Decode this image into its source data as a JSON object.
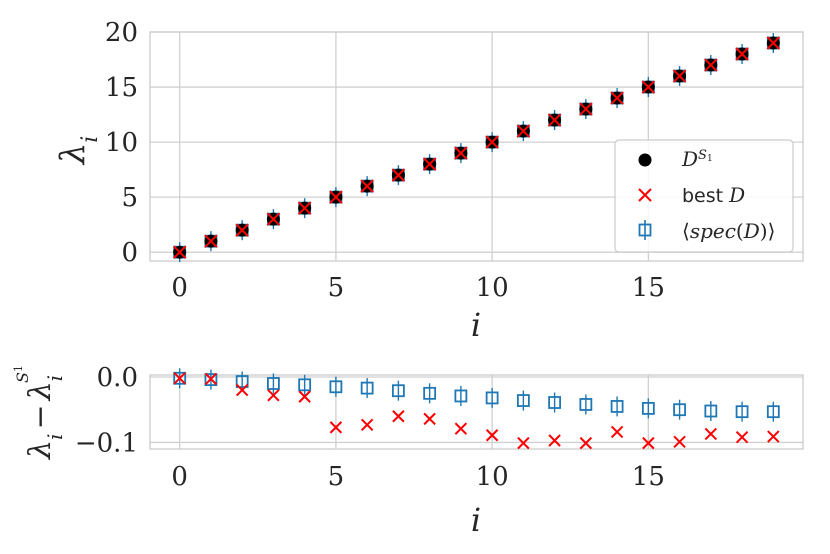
{
  "chart_data": [
    {
      "type": "scatter",
      "title": "",
      "xlabel": "i",
      "ylabel": "λ_i",
      "xlim": [
        -0.95,
        19.95
      ],
      "ylim": [
        -0.8,
        20
      ],
      "xticks": [
        0,
        5,
        10,
        15
      ],
      "yticks": [
        0,
        5,
        10,
        15,
        20
      ],
      "grid": true,
      "legend_position": "center-right",
      "x": [
        0,
        1,
        2,
        3,
        4,
        5,
        6,
        7,
        8,
        9,
        10,
        11,
        12,
        13,
        14,
        15,
        16,
        17,
        18,
        19
      ],
      "series": [
        {
          "name": "D^{S^1}",
          "marker": "circle",
          "color": "#000000",
          "values": [
            0,
            1,
            2,
            3,
            4,
            5,
            6,
            7,
            8,
            9,
            10,
            11,
            12,
            13,
            14,
            15,
            16,
            17,
            18,
            19
          ]
        },
        {
          "name": "best D",
          "marker": "x",
          "color": "#ff0000",
          "values": [
            0,
            1,
            2,
            3,
            4,
            5,
            6,
            7,
            8,
            9,
            10,
            11,
            12,
            13,
            14,
            15,
            16,
            17,
            18,
            19
          ]
        },
        {
          "name": "⟨spec(D)⟩",
          "marker": "square-errorbar",
          "color": "#1f77b4",
          "values": [
            0,
            1,
            2,
            3,
            4,
            5,
            6,
            7,
            8,
            9,
            10,
            11,
            12,
            13,
            14,
            15,
            16,
            17,
            18,
            19
          ]
        }
      ]
    },
    {
      "type": "scatter",
      "title": "",
      "xlabel": "i",
      "ylabel": "λ_i − λ_i^{S^1}",
      "xlim": [
        -0.95,
        19.95
      ],
      "ylim": [
        -0.11,
        0.003
      ],
      "xticks": [
        0,
        5,
        10,
        15
      ],
      "yticks": [
        0.0,
        -0.1
      ],
      "ytick_labels": [
        "0.0",
        "−0.1"
      ],
      "grid": true,
      "x": [
        0,
        1,
        2,
        3,
        4,
        5,
        6,
        7,
        8,
        9,
        10,
        11,
        12,
        13,
        14,
        15,
        16,
        17,
        18,
        19
      ],
      "series": [
        {
          "name": "best D",
          "marker": "x",
          "color": "#ff0000",
          "values": [
            -0.002,
            -0.003,
            -0.02,
            -0.028,
            -0.03,
            -0.077,
            -0.073,
            -0.06,
            -0.064,
            -0.079,
            -0.089,
            -0.101,
            -0.097,
            -0.101,
            -0.084,
            -0.101,
            -0.099,
            -0.087,
            -0.092,
            -0.091
          ]
        },
        {
          "name": "⟨spec(D)⟩",
          "marker": "square-errorbar",
          "color": "#1f77b4",
          "values": [
            -0.002,
            -0.004,
            -0.007,
            -0.01,
            -0.012,
            -0.015,
            -0.017,
            -0.021,
            -0.025,
            -0.029,
            -0.032,
            -0.036,
            -0.039,
            -0.042,
            -0.045,
            -0.048,
            -0.05,
            -0.052,
            -0.053,
            -0.053
          ]
        }
      ]
    }
  ]
}
